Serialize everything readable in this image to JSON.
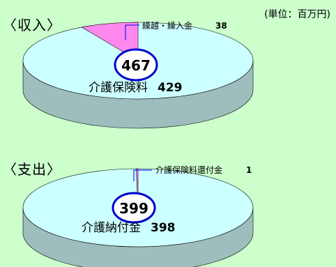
{
  "unit": "(単位：百万円)",
  "colors": {
    "background": "#CCFFCC",
    "main_top": "#CCFFFF",
    "main_side": "#9EBDBD",
    "minor_slice": "#FF88EE",
    "outline": "#000000",
    "total_ring": "#0000CC"
  },
  "chart_data": [
    {
      "type": "pie",
      "title": "〈収入〉",
      "total": "467",
      "slices": [
        {
          "label": "介護保険料",
          "value": 429,
          "value_label": "429"
        },
        {
          "label": "繰越・繰入金",
          "value": 38,
          "value_label": "38"
        }
      ]
    },
    {
      "type": "pie",
      "title": "〈支出〉",
      "total": "399",
      "slices": [
        {
          "label": "介護納付金",
          "value": 398,
          "value_label": "398"
        },
        {
          "label": "介護保険料還付金",
          "value": 1,
          "value_label": "1"
        }
      ]
    }
  ]
}
